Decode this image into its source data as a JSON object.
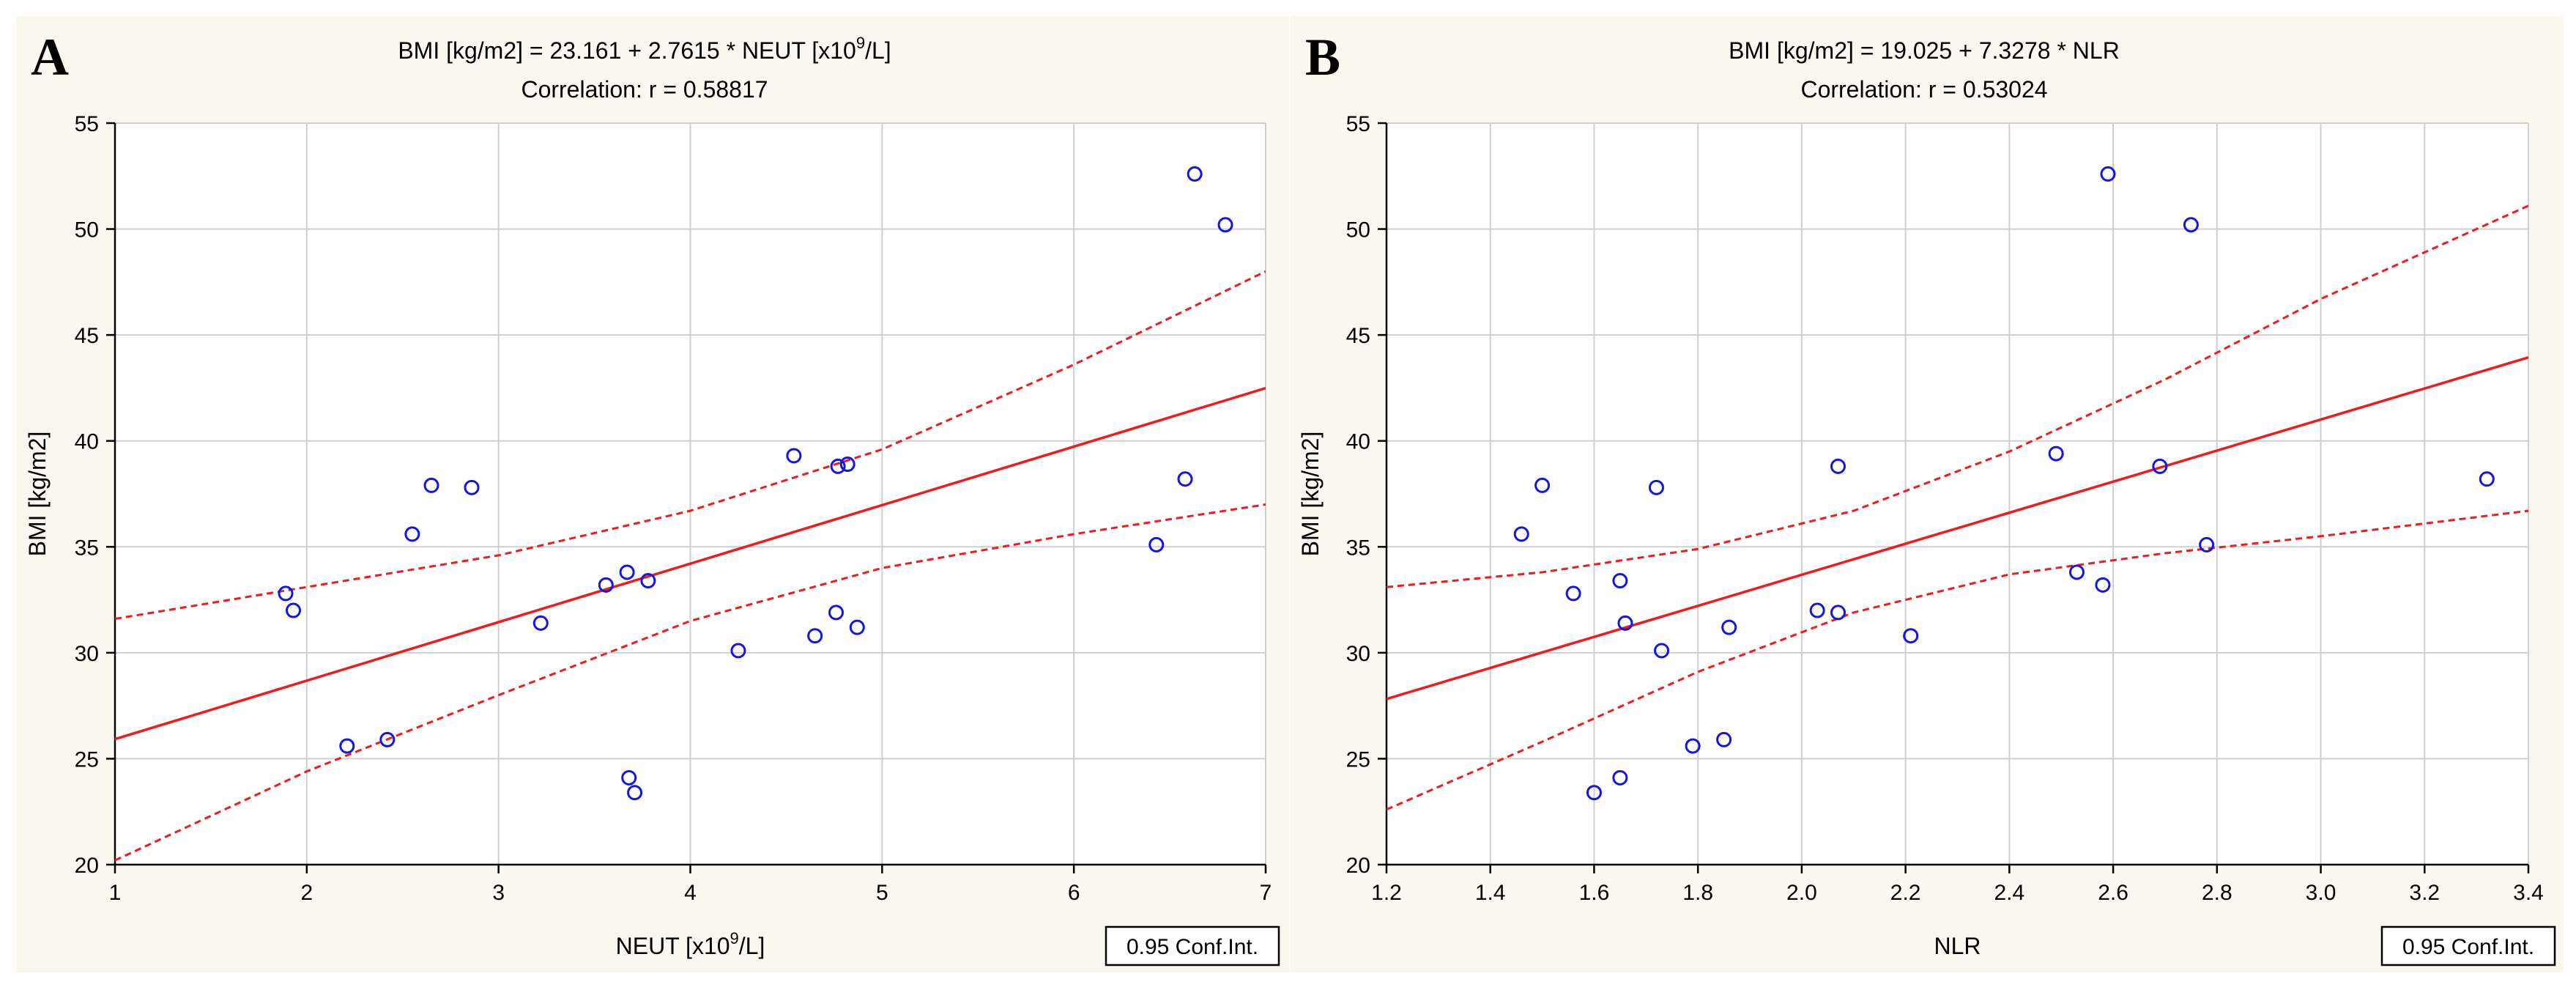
{
  "colors": {
    "panel_bg": "#faf7ee",
    "plot_bg": "#ffffff",
    "grid": "#cfcfcf",
    "axis": "#000000",
    "fit_line": "#ee1c1c",
    "marker": "#1414e6"
  },
  "chart_data": [
    {
      "type": "scatter",
      "panel_label": "A",
      "equation_prefix": "BMI [kg/m2] = 23.161 + 2.7615 * NEUT [x10",
      "equation_sup": "9",
      "equation_suffix": "/L]",
      "correlation": "Correlation: r = 0.58817",
      "xlabel_prefix": "NEUT [x10",
      "xlabel_sup": "9",
      "xlabel_suffix": "/L]",
      "ylabel": "BMI [kg/m2]",
      "legend": "0.95 Conf.Int.",
      "xlim": [
        1,
        7
      ],
      "ylim": [
        20,
        55
      ],
      "xticks": [
        1,
        2,
        3,
        4,
        5,
        6,
        7
      ],
      "xtick_labels": [
        "1",
        "2",
        "3",
        "4",
        "5",
        "6",
        "7"
      ],
      "yticks": [
        20,
        25,
        30,
        35,
        40,
        45,
        50,
        55
      ],
      "ytick_labels": [
        "20",
        "25",
        "30",
        "35",
        "40",
        "45",
        "50",
        "55"
      ],
      "fit": {
        "intercept": 23.161,
        "slope": 2.7615
      },
      "ci_upper": [
        [
          1,
          31.6
        ],
        [
          2,
          33.1
        ],
        [
          3,
          34.6
        ],
        [
          4,
          36.7
        ],
        [
          5,
          39.6
        ],
        [
          6,
          43.6
        ],
        [
          7,
          48.0
        ]
      ],
      "ci_lower": [
        [
          1,
          20.2
        ],
        [
          2,
          24.4
        ],
        [
          3,
          28.0
        ],
        [
          4,
          31.5
        ],
        [
          5,
          34.0
        ],
        [
          6,
          35.6
        ],
        [
          7,
          37.0
        ]
      ],
      "points": [
        [
          1.89,
          32.8
        ],
        [
          1.93,
          32.0
        ],
        [
          2.21,
          25.6
        ],
        [
          2.42,
          25.9
        ],
        [
          2.55,
          35.6
        ],
        [
          2.65,
          37.9
        ],
        [
          2.86,
          37.8
        ],
        [
          3.22,
          31.4
        ],
        [
          3.56,
          33.2
        ],
        [
          3.67,
          33.8
        ],
        [
          3.68,
          24.1
        ],
        [
          3.71,
          23.4
        ],
        [
          3.78,
          33.4
        ],
        [
          4.25,
          30.1
        ],
        [
          4.54,
          39.3
        ],
        [
          4.65,
          30.8
        ],
        [
          4.76,
          31.9
        ],
        [
          4.77,
          38.8
        ],
        [
          4.82,
          38.9
        ],
        [
          4.87,
          31.2
        ],
        [
          6.43,
          35.1
        ],
        [
          6.58,
          38.2
        ],
        [
          6.63,
          52.6
        ],
        [
          6.79,
          50.2
        ]
      ]
    },
    {
      "type": "scatter",
      "panel_label": "B",
      "equation_prefix": "BMI [kg/m2] = 19.025 + 7.3278 * NLR",
      "equation_sup": "",
      "equation_suffix": "",
      "correlation": "Correlation: r = 0.53024",
      "xlabel_prefix": "NLR",
      "xlabel_sup": "",
      "xlabel_suffix": "",
      "ylabel": "BMI [kg/m2]",
      "legend": "0.95 Conf.Int.",
      "xlim": [
        1.2,
        3.4
      ],
      "ylim": [
        20,
        55
      ],
      "xticks": [
        1.2,
        1.4,
        1.6,
        1.8,
        2.0,
        2.2,
        2.4,
        2.6,
        2.8,
        3.0,
        3.2,
        3.4
      ],
      "xtick_labels": [
        "1.2",
        "1.4",
        "1.6",
        "1.8",
        "2.0",
        "2.2",
        "2.4",
        "2.6",
        "2.8",
        "3.0",
        "3.2",
        "3.4"
      ],
      "yticks": [
        20,
        25,
        30,
        35,
        40,
        45,
        50,
        55
      ],
      "ytick_labels": [
        "20",
        "25",
        "30",
        "35",
        "40",
        "45",
        "50",
        "55"
      ],
      "fit": {
        "intercept": 19.025,
        "slope": 7.3278
      },
      "ci_upper": [
        [
          1.2,
          33.1
        ],
        [
          1.5,
          33.8
        ],
        [
          1.8,
          34.9
        ],
        [
          2.1,
          36.7
        ],
        [
          2.4,
          39.5
        ],
        [
          2.7,
          42.9
        ],
        [
          3.0,
          46.7
        ],
        [
          3.4,
          51.1
        ]
      ],
      "ci_lower": [
        [
          1.2,
          22.6
        ],
        [
          1.5,
          25.8
        ],
        [
          1.8,
          29.1
        ],
        [
          2.1,
          31.9
        ],
        [
          2.4,
          33.7
        ],
        [
          2.7,
          34.7
        ],
        [
          3.0,
          35.5
        ],
        [
          3.4,
          36.7
        ]
      ],
      "points": [
        [
          1.46,
          35.6
        ],
        [
          1.5,
          37.9
        ],
        [
          1.56,
          32.8
        ],
        [
          1.6,
          23.4
        ],
        [
          1.65,
          24.1
        ],
        [
          1.65,
          33.4
        ],
        [
          1.66,
          31.4
        ],
        [
          1.72,
          37.8
        ],
        [
          1.73,
          30.1
        ],
        [
          1.79,
          25.6
        ],
        [
          1.85,
          25.9
        ],
        [
          1.86,
          31.2
        ],
        [
          2.03,
          32.0
        ],
        [
          2.07,
          31.9
        ],
        [
          2.07,
          38.8
        ],
        [
          2.21,
          30.8
        ],
        [
          2.49,
          39.4
        ],
        [
          2.53,
          33.8
        ],
        [
          2.58,
          33.2
        ],
        [
          2.59,
          52.6
        ],
        [
          2.69,
          38.8
        ],
        [
          2.75,
          50.2
        ],
        [
          2.78,
          35.1
        ],
        [
          3.32,
          38.2
        ]
      ]
    }
  ]
}
